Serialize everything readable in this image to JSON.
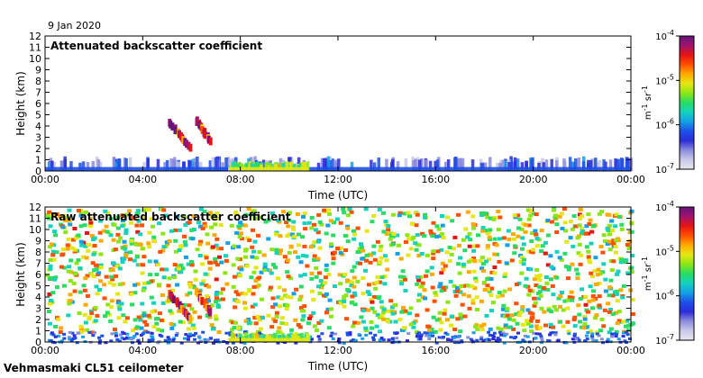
{
  "header": {
    "date": "9 Jan 2020"
  },
  "footer": {
    "instrument": "Vehmasmaki CL51 ceilometer"
  },
  "colorbar": {
    "unit_text": "m",
    "unit_exp1": "-1",
    "unit_sr": " sr",
    "unit_exp2": "-1",
    "ticks": [
      {
        "base": "10",
        "exp": "-4",
        "value": 0.0001
      },
      {
        "base": "10",
        "exp": "-5",
        "value": 1e-05
      },
      {
        "base": "10",
        "exp": "-6",
        "value": 1e-06
      },
      {
        "base": "10",
        "exp": "-7",
        "value": 1e-07
      }
    ],
    "colors": [
      "#e8e8f0",
      "#c8c8e8",
      "#8c8cdc",
      "#2c2cd8",
      "#1e50e6",
      "#14a0e6",
      "#14d2be",
      "#28dc64",
      "#8ce614",
      "#e6e614",
      "#ffaa00",
      "#ff5000",
      "#e61414",
      "#a0146e",
      "#64147a"
    ]
  },
  "chart_data": [
    {
      "type": "heatmap",
      "title": "Attenuated backscatter coefficient",
      "xlabel": "Time (UTC)",
      "ylabel": "Height (km)",
      "x_ticks": [
        "00:00",
        "04:00",
        "08:00",
        "12:00",
        "16:00",
        "20:00",
        "00:00"
      ],
      "xlim_hours": [
        0,
        24
      ],
      "y_ticks": [
        "0",
        "1",
        "2",
        "3",
        "4",
        "5",
        "6",
        "7",
        "8",
        "9",
        "10",
        "11",
        "12"
      ],
      "ylim": [
        0,
        12
      ],
      "color_scale": "log",
      "clim": [
        1e-07,
        0.0001
      ],
      "features": [
        {
          "label": "aerosol layer",
          "t_start": 0,
          "t_end": 24,
          "h_top": 1.2,
          "value": 3e-07
        },
        {
          "label": "low layer",
          "t_start": 7.5,
          "t_end": 10.8,
          "h_top": 0.8,
          "value": 3e-06
        },
        {
          "label": "cloud",
          "t_start": 5.0,
          "t_end": 5.9,
          "h_bottom": 1.9,
          "h_top": 4.3,
          "value": 5e-05
        },
        {
          "label": "cloud",
          "t_start": 6.1,
          "t_end": 6.7,
          "h_bottom": 2.5,
          "h_top": 4.5,
          "value": 4e-05
        }
      ]
    },
    {
      "type": "heatmap",
      "title": "Raw attenuated backscatter coefficient",
      "xlabel": "Time (UTC)",
      "ylabel": "Height (km)",
      "x_ticks": [
        "00:00",
        "04:00",
        "08:00",
        "12:00",
        "16:00",
        "20:00",
        "00:00"
      ],
      "xlim_hours": [
        0,
        24
      ],
      "y_ticks": [
        "0",
        "1",
        "2",
        "3",
        "4",
        "5",
        "6",
        "7",
        "8",
        "9",
        "10",
        "11",
        "12"
      ],
      "ylim": [
        0,
        12
      ],
      "color_scale": "log",
      "clim": [
        1e-07,
        0.0001
      ],
      "features": [
        {
          "label": "noise",
          "t_start": 0,
          "t_end": 24,
          "h_bottom": 1,
          "h_top": 12,
          "value": 6e-06
        },
        {
          "label": "low layer",
          "t_start": 7.5,
          "t_end": 10.8,
          "h_top": 0.8,
          "value": 3e-06
        },
        {
          "label": "cloud",
          "t_start": 5.0,
          "t_end": 5.9,
          "h_bottom": 1.9,
          "h_top": 4.3,
          "value": 5e-05
        },
        {
          "label": "cloud",
          "t_start": 6.1,
          "t_end": 6.7,
          "h_bottom": 2.5,
          "h_top": 4.5,
          "value": 4e-05
        }
      ]
    }
  ]
}
